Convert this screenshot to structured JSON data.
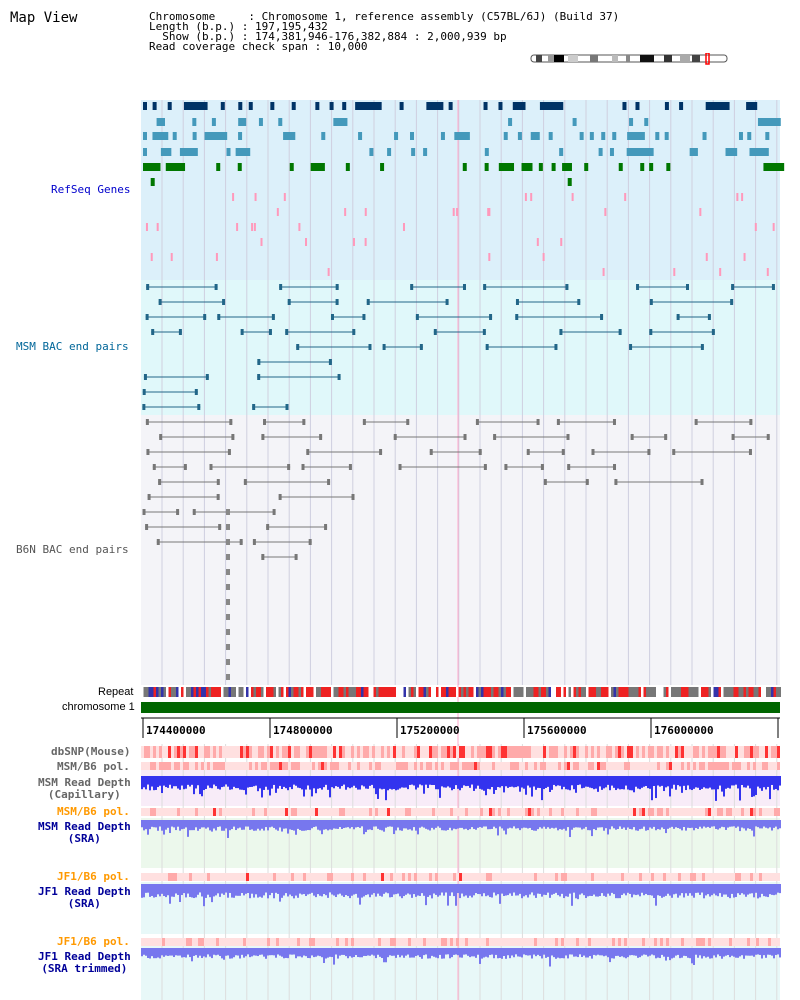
{
  "title": "Map View",
  "header": {
    "line1": "Chromosome     : Chromosome 1, reference assembly (C57BL/6J) (Build 37)",
    "line2": "Length (b.p.) : 197,195,432",
    "line3": "  Show (b.p.) : 174,381,946-176,382,884 : 2,000,939 bp",
    "line4": "Read coverage check span : 10,000"
  },
  "labels": {
    "refseq": "RefSeq Genes",
    "msm_bac": "MSM BAC end pairs",
    "b6n_bac": "B6N BAC end pairs",
    "repeat": "Repeat",
    "chromosome": "chromosome 1",
    "dbsnp": "dbSNP(Mouse)",
    "msm_b6_pol": "MSM/B6 pol.",
    "msm_depth_cap_1": "MSM Read Depth",
    "msm_depth_cap_2": "(Capillary)",
    "msm_b6_pol_2": "MSM/B6 pol.",
    "msm_depth_sra_1": "MSM Read Depth",
    "msm_depth_sra_2": "(SRA)",
    "jf1_b6_pol": "JF1/B6 pol.",
    "jf1_depth_sra_1": "JF1 Read Depth",
    "jf1_depth_sra_2": "(SRA)",
    "jf1_b6_pol_2": "JF1/B6 pol.",
    "jf1_depth_trim_1": "JF1 Read Depth",
    "jf1_depth_trim_2": "(SRA trimmed)"
  },
  "ticks": [
    "174400000",
    "174800000",
    "175200000",
    "175600000",
    "176000000"
  ],
  "colors": {
    "refseq_bg": "#dcf0fa",
    "msm_bg": "#e0f8fa",
    "b6n_bg": "#f4f4f8",
    "navy": "#003366",
    "teal": "#4499bb",
    "green": "#007700",
    "pink": "#ff99bb",
    "chrom": "#006600",
    "depth": "#3333ee",
    "depth_light": "#7777ee"
  }
}
